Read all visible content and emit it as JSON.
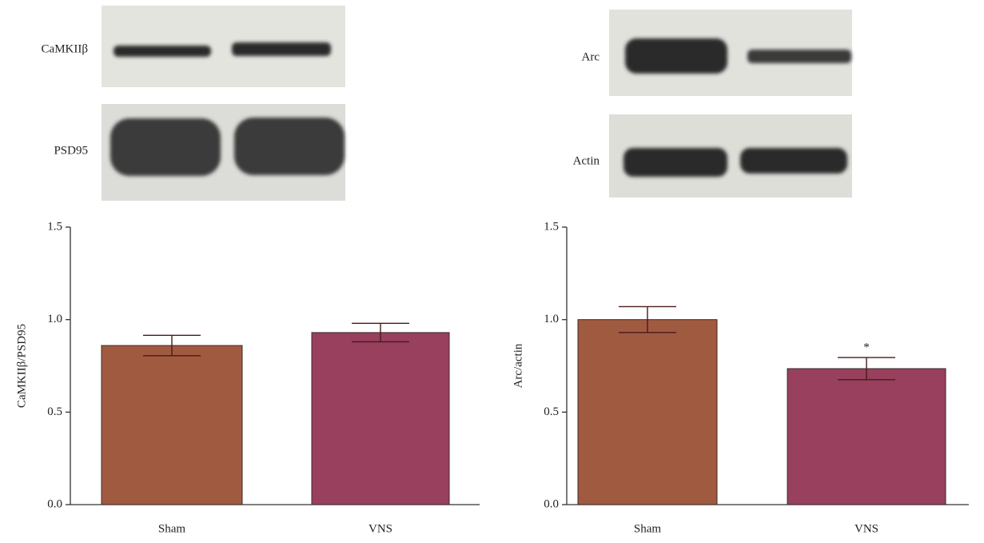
{
  "blots": [
    {
      "labels": [
        "CaMKIIβ",
        "PSD95"
      ]
    },
    {
      "labels": [
        "Arc",
        "Actin"
      ]
    }
  ],
  "chart_data": [
    {
      "type": "bar",
      "y_label": "CaMKIIβ/PSD95",
      "categories": [
        "Sham",
        "VNS"
      ],
      "values": [
        0.86,
        0.93
      ],
      "errors": [
        0.055,
        0.05
      ],
      "colors": [
        "#a05a40",
        "#98405e"
      ],
      "ylim": [
        0,
        1.5
      ],
      "yticks": [
        {
          "value": 0,
          "label": "0.0"
        },
        0.5,
        {
          "value": 1,
          "label": "1.0"
        },
        1.5
      ]
    },
    {
      "type": "bar",
      "y_label": "Arc/actin",
      "categories": [
        "Sham",
        "VNS"
      ],
      "values": [
        1.0,
        0.735
      ],
      "errors": [
        0.07,
        0.06
      ],
      "colors": [
        "#a05a40",
        "#98405e"
      ],
      "ylim": [
        0,
        1.5
      ],
      "yticks": [
        {
          "value": 0,
          "label": "0.0"
        },
        0.5,
        {
          "value": 1,
          "label": "1.0"
        },
        1.5
      ],
      "annotations": [
        {
          "text": "*",
          "category": "VNS"
        }
      ]
    }
  ]
}
